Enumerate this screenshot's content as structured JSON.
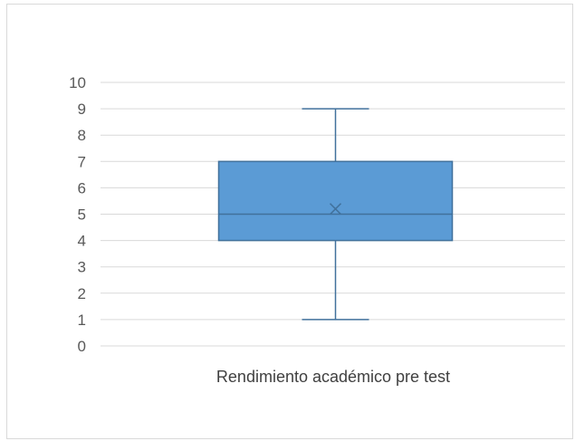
{
  "chart_data": {
    "type": "boxplot",
    "title": "",
    "xlabel": "",
    "ylabel": "",
    "ylim": [
      0,
      10
    ],
    "yticks": [
      0,
      1,
      2,
      3,
      4,
      5,
      6,
      7,
      8,
      9,
      10
    ],
    "grid": true,
    "legend": "none",
    "categories": [
      "Rendimiento académico pre test"
    ],
    "series": [
      {
        "min": 1,
        "q1": 4,
        "median": 5,
        "q3": 7,
        "max": 9,
        "mean": 5.2
      }
    ],
    "colors": {
      "box_fill": "#5b9bd5",
      "box_stroke": "#41719c",
      "grid": "#d9d9d9"
    }
  }
}
